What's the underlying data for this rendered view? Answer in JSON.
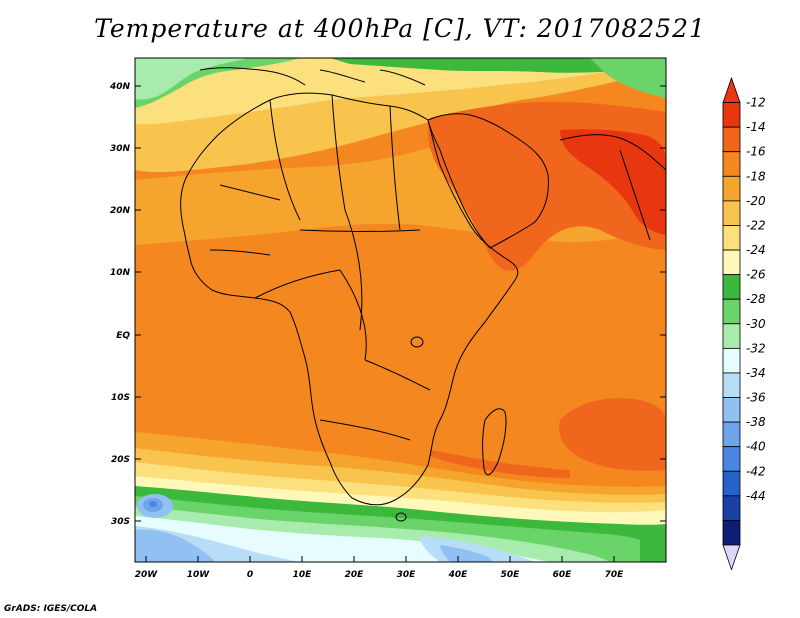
{
  "title": "Temperature at 400hPa [C], VT: 2017082521",
  "credit": "GrADS: IGES/COLA",
  "axes": {
    "lon_ticks": [
      "20W",
      "10W",
      "0",
      "10E",
      "20E",
      "30E",
      "40E",
      "50E",
      "60E",
      "70E"
    ],
    "lat_ticks": [
      "40N",
      "30N",
      "20N",
      "10N",
      "EQ",
      "10S",
      "20S",
      "30S"
    ]
  },
  "colorbar": {
    "labels": [
      "-12",
      "-14",
      "-16",
      "-18",
      "-20",
      "-22",
      "-24",
      "-26",
      "-28",
      "-30",
      "-32",
      "-34",
      "-36",
      "-38",
      "-40",
      "-42",
      "-44"
    ],
    "colors": [
      "#e8360e",
      "#f0661c",
      "#f4871f",
      "#f5a52e",
      "#f8c44d",
      "#fbe07d",
      "#fff8b8",
      "#3cb83c",
      "#6ad36a",
      "#a8ecad",
      "#e6fcff",
      "#b8ddf7",
      "#90c1f2",
      "#6ea5ea",
      "#4a86df",
      "#2463c9",
      "#1a40a8",
      "#0c1d78"
    ],
    "over_color": "#e8360e",
    "under_color": "#dfd6f8"
  }
}
